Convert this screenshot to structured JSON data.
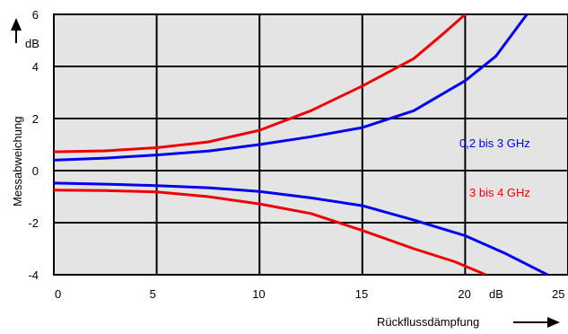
{
  "chart_data": {
    "type": "line",
    "xlabel": "Rückflussdämpfung",
    "ylabel": "Messabweichung",
    "x_unit": "dB",
    "y_unit": "dB",
    "xlim": [
      0,
      25
    ],
    "ylim": [
      -4,
      6
    ],
    "x_ticks": [
      "0",
      "5",
      "10",
      "15",
      "20",
      "25"
    ],
    "y_ticks": [
      "6",
      "4",
      "2",
      "0",
      "-2",
      "-4"
    ],
    "grid": true,
    "background": "#e4e4e4",
    "series": [
      {
        "name": "0,2 bis 3 GHz",
        "color": "#0000ee",
        "curves": [
          [
            [
              0,
              0.4
            ],
            [
              2.5,
              0.48
            ],
            [
              5,
              0.6
            ],
            [
              7.5,
              0.75
            ],
            [
              10,
              1.0
            ],
            [
              12.5,
              1.3
            ],
            [
              15,
              1.65
            ],
            [
              17.5,
              2.3
            ],
            [
              20,
              3.45
            ],
            [
              21.5,
              4.4
            ],
            [
              23,
              6.0
            ]
          ],
          [
            [
              0,
              -0.48
            ],
            [
              2.5,
              -0.52
            ],
            [
              5,
              -0.58
            ],
            [
              7.5,
              -0.66
            ],
            [
              10,
              -0.8
            ],
            [
              12.5,
              -1.05
            ],
            [
              15,
              -1.35
            ],
            [
              17.5,
              -1.9
            ],
            [
              20,
              -2.5
            ],
            [
              22,
              -3.2
            ],
            [
              24,
              -4.0
            ]
          ]
        ]
      },
      {
        "name": "3 bis 4 GHz",
        "color": "#ee0000",
        "curves": [
          [
            [
              0,
              0.72
            ],
            [
              2.5,
              0.76
            ],
            [
              5,
              0.88
            ],
            [
              7.5,
              1.1
            ],
            [
              10,
              1.55
            ],
            [
              12.5,
              2.3
            ],
            [
              15,
              3.25
            ],
            [
              17.5,
              4.3
            ],
            [
              19,
              5.3
            ],
            [
              20,
              6.0
            ]
          ],
          [
            [
              0,
              -0.75
            ],
            [
              2.5,
              -0.77
            ],
            [
              5,
              -0.82
            ],
            [
              7.5,
              -1.0
            ],
            [
              10,
              -1.28
            ],
            [
              12.5,
              -1.65
            ],
            [
              15,
              -2.3
            ],
            [
              17.5,
              -3.0
            ],
            [
              19.5,
              -3.5
            ],
            [
              21,
              -4.0
            ]
          ]
        ]
      }
    ]
  }
}
